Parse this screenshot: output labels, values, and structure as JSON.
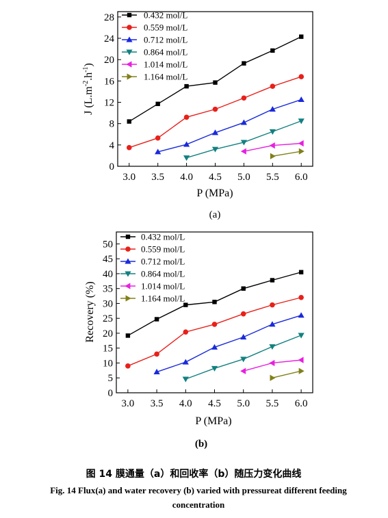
{
  "chart_data": [
    {
      "type": "line",
      "panel_label": "(a)",
      "xlabel": "P (MPa)",
      "ylabel": "J (L.m",
      "ylabel_sup1": "-2",
      "ylabel_mid": ".h",
      "ylabel_sup2": "-1",
      "ylabel_end": ")",
      "xlim": [
        2.8,
        6.2
      ],
      "ylim": [
        0,
        29
      ],
      "xticks": [
        "3.0",
        "3.5",
        "4.0",
        "4.5",
        "5.0",
        "5.5",
        "6.0"
      ],
      "yticks": [
        "0",
        "4",
        "8",
        "12",
        "16",
        "20",
        "24",
        "28"
      ],
      "legend_position": "top-left",
      "series": [
        {
          "name": "0.432 mol/L",
          "color": "#000000",
          "marker": "square",
          "x": [
            3.0,
            3.5,
            4.0,
            4.5,
            5.0,
            5.5,
            6.0
          ],
          "y": [
            8.4,
            11.7,
            15.0,
            15.7,
            19.3,
            21.7,
            24.3
          ]
        },
        {
          "name": "0.559 mol/L",
          "color": "#e8201a",
          "marker": "circle",
          "x": [
            3.0,
            3.5,
            4.0,
            4.5,
            5.0,
            5.5,
            6.0
          ],
          "y": [
            3.5,
            5.3,
            9.2,
            10.7,
            12.8,
            15.0,
            16.8
          ]
        },
        {
          "name": "0.712 mol/L",
          "color": "#1a2adb",
          "marker": "triangle-up",
          "x": [
            3.5,
            4.0,
            4.5,
            5.0,
            5.5,
            6.0
          ],
          "y": [
            2.7,
            4.1,
            6.3,
            8.2,
            10.7,
            12.5
          ]
        },
        {
          "name": "0.864 mol/L",
          "color": "#138080",
          "marker": "triangle-down",
          "x": [
            4.0,
            4.5,
            5.0,
            5.5,
            6.0
          ],
          "y": [
            1.6,
            3.2,
            4.5,
            6.5,
            8.5
          ]
        },
        {
          "name": "1.014 mol/L",
          "color": "#e820e0",
          "marker": "triangle-left",
          "x": [
            5.0,
            5.5,
            6.0
          ],
          "y": [
            2.8,
            3.9,
            4.3
          ]
        },
        {
          "name": "1.164 mol/L",
          "color": "#808019",
          "marker": "triangle-right",
          "x": [
            5.5,
            6.0
          ],
          "y": [
            1.9,
            2.8
          ]
        }
      ]
    },
    {
      "type": "line",
      "panel_label": "(b)",
      "xlabel": "P (MPa)",
      "ylabel": "Recovery (%)",
      "xlim": [
        2.8,
        6.2
      ],
      "ylim": [
        0,
        54
      ],
      "xticks": [
        "3.0",
        "3.5",
        "4.0",
        "4.5",
        "5.0",
        "5.5",
        "6.0"
      ],
      "yticks": [
        "0",
        "5",
        "10",
        "15",
        "20",
        "25",
        "30",
        "35",
        "40",
        "45",
        "50"
      ],
      "legend_position": "top-left",
      "series": [
        {
          "name": "0.432 mol/L",
          "color": "#000000",
          "marker": "square",
          "x": [
            3.0,
            3.5,
            4.0,
            4.5,
            5.0,
            5.5,
            6.0
          ],
          "y": [
            19.2,
            24.7,
            29.5,
            30.5,
            35.0,
            37.8,
            40.5
          ]
        },
        {
          "name": "0.559 mol/L",
          "color": "#e8201a",
          "marker": "circle",
          "x": [
            3.0,
            3.5,
            4.0,
            4.5,
            5.0,
            5.5,
            6.0
          ],
          "y": [
            9.0,
            13.0,
            20.4,
            23.0,
            26.5,
            29.5,
            32.0
          ]
        },
        {
          "name": "0.712 mol/L",
          "color": "#1a2adb",
          "marker": "triangle-up",
          "x": [
            3.5,
            4.0,
            4.5,
            5.0,
            5.5,
            6.0
          ],
          "y": [
            7.0,
            10.3,
            15.3,
            18.7,
            23.0,
            26.0
          ]
        },
        {
          "name": "0.864 mol/L",
          "color": "#138080",
          "marker": "triangle-down",
          "x": [
            4.0,
            4.5,
            5.0,
            5.5,
            6.0
          ],
          "y": [
            4.6,
            8.2,
            11.3,
            15.5,
            19.3
          ]
        },
        {
          "name": "1.014 mol/L",
          "color": "#e820e0",
          "marker": "triangle-left",
          "x": [
            5.0,
            5.5,
            6.0
          ],
          "y": [
            7.3,
            10.0,
            11.0
          ]
        },
        {
          "name": "1.164 mol/L",
          "color": "#808019",
          "marker": "triangle-right",
          "x": [
            5.5,
            6.0
          ],
          "y": [
            5.0,
            7.3
          ]
        }
      ]
    }
  ],
  "caption": {
    "cn": "图 14   膜通量（a）和回收率（b）随压力变化曲线",
    "en_line1": "Fig. 14    Flux(a) and water recovery (b) varied with pressureat different feeding",
    "en_line2": "concentration"
  }
}
